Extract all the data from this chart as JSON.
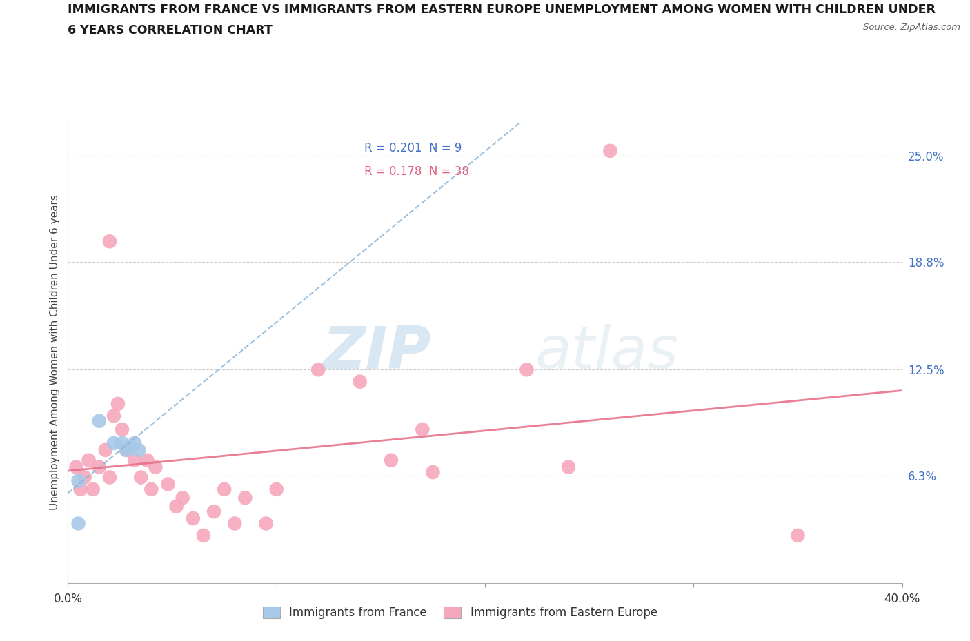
{
  "title_line1": "IMMIGRANTS FROM FRANCE VS IMMIGRANTS FROM EASTERN EUROPE UNEMPLOYMENT AMONG WOMEN WITH CHILDREN UNDER",
  "title_line2": "6 YEARS CORRELATION CHART",
  "source": "Source: ZipAtlas.com",
  "ylabel": "Unemployment Among Women with Children Under 6 years",
  "xlim": [
    0.0,
    0.4
  ],
  "ylim": [
    0.0,
    0.27
  ],
  "yticks": [
    0.0,
    0.063,
    0.125,
    0.188,
    0.25
  ],
  "ytick_labels": [
    "",
    "6.3%",
    "12.5%",
    "18.8%",
    "25.0%"
  ],
  "xticks": [
    0.0,
    0.1,
    0.2,
    0.3,
    0.4
  ],
  "xtick_labels": [
    "0.0%",
    "",
    "",
    "",
    "40.0%"
  ],
  "france_color": "#a8c8e8",
  "eastern_europe_color": "#f5a8bc",
  "france_trend_color": "#8ab4d8",
  "eastern_europe_trend_color": "#e8708a",
  "france_R": "0.201",
  "france_N": "9",
  "eastern_europe_R": "0.178",
  "eastern_europe_N": "38",
  "france_points": [
    [
      0.005,
      0.06
    ],
    [
      0.015,
      0.095
    ],
    [
      0.022,
      0.082
    ],
    [
      0.026,
      0.082
    ],
    [
      0.028,
      0.078
    ],
    [
      0.03,
      0.08
    ],
    [
      0.032,
      0.082
    ],
    [
      0.034,
      0.078
    ],
    [
      0.005,
      0.035
    ]
  ],
  "eastern_europe_points": [
    [
      0.004,
      0.068
    ],
    [
      0.006,
      0.055
    ],
    [
      0.008,
      0.062
    ],
    [
      0.01,
      0.072
    ],
    [
      0.012,
      0.055
    ],
    [
      0.015,
      0.068
    ],
    [
      0.018,
      0.078
    ],
    [
      0.02,
      0.062
    ],
    [
      0.022,
      0.098
    ],
    [
      0.024,
      0.105
    ],
    [
      0.026,
      0.09
    ],
    [
      0.028,
      0.078
    ],
    [
      0.032,
      0.072
    ],
    [
      0.035,
      0.062
    ],
    [
      0.038,
      0.072
    ],
    [
      0.04,
      0.055
    ],
    [
      0.042,
      0.068
    ],
    [
      0.048,
      0.058
    ],
    [
      0.052,
      0.045
    ],
    [
      0.055,
      0.05
    ],
    [
      0.06,
      0.038
    ],
    [
      0.065,
      0.028
    ],
    [
      0.07,
      0.042
    ],
    [
      0.075,
      0.055
    ],
    [
      0.08,
      0.035
    ],
    [
      0.085,
      0.05
    ],
    [
      0.095,
      0.035
    ],
    [
      0.1,
      0.055
    ],
    [
      0.12,
      0.125
    ],
    [
      0.14,
      0.118
    ],
    [
      0.155,
      0.072
    ],
    [
      0.17,
      0.09
    ],
    [
      0.175,
      0.065
    ],
    [
      0.22,
      0.125
    ],
    [
      0.24,
      0.068
    ],
    [
      0.26,
      0.253
    ],
    [
      0.35,
      0.028
    ],
    [
      0.02,
      0.2
    ]
  ],
  "watermark_zip": "ZIP",
  "watermark_atlas": "atlas",
  "background_color": "#ffffff",
  "grid_color": "#cccccc",
  "right_tick_color": "#4472c4"
}
